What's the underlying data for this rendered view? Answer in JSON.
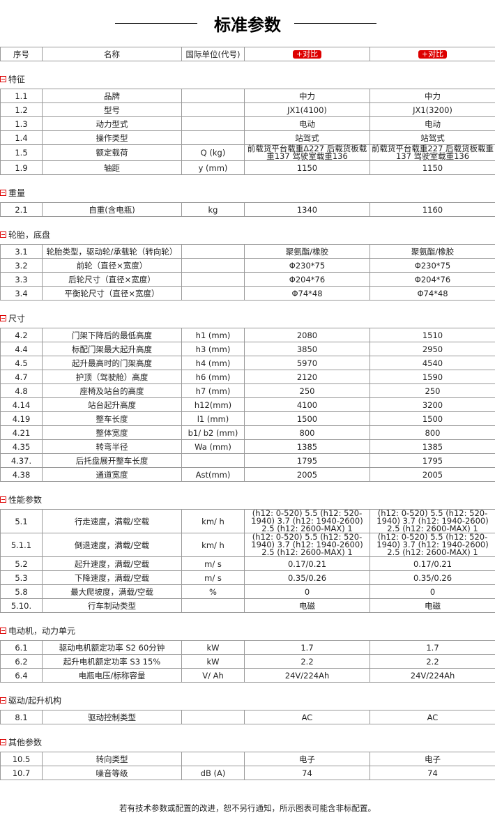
{
  "title": "标准参数",
  "header": {
    "no": "序号",
    "name": "名称",
    "unit": "国际单位(代号)",
    "compare1": "+对比",
    "compare2": "+对比"
  },
  "sections": [
    {
      "title": "特征",
      "rows": [
        [
          "1.1",
          "品牌",
          "",
          "中力",
          "中力"
        ],
        [
          "1.2",
          "型号",
          "",
          "JX1(4100)",
          "JX1(3200)"
        ],
        [
          "1.3",
          "动力型式",
          "",
          "电动",
          "电动"
        ],
        [
          "1.4",
          "操作类型",
          "",
          "站驾式",
          "站驾式"
        ],
        [
          "1.5",
          "额定载荷",
          "Q (kg)",
          "前载货平台载重Δ227 后载货板载重137 驾驶室载重136",
          "前载货平台载重227 后载货板载重137 驾驶室载重136"
        ],
        [
          "1.9",
          "轴距",
          "y (mm)",
          "1150",
          "1150"
        ]
      ]
    },
    {
      "title": "重量",
      "rows": [
        [
          "2.1",
          "自重(含电瓶)",
          "kg",
          "1340",
          "1160"
        ]
      ]
    },
    {
      "title": "轮胎，底盘",
      "rows": [
        [
          "3.1",
          "轮胎类型，驱动轮/承载轮（转向轮）",
          "",
          "聚氨酯/橡胶",
          "聚氨酯/橡胶"
        ],
        [
          "3.2",
          "前轮（直径×宽度）",
          "",
          "Φ230*75",
          "Φ230*75"
        ],
        [
          "3.3",
          "后轮尺寸（直径×宽度）",
          "",
          "Φ204*76",
          "Φ204*76"
        ],
        [
          "3.4",
          "平衡轮尺寸（直径×宽度）",
          "",
          "Φ74*48",
          "Φ74*48"
        ]
      ]
    },
    {
      "title": "尺寸",
      "rows": [
        [
          "4.2",
          "门架下降后的最低高度",
          "h1 (mm)",
          "2080",
          "1510"
        ],
        [
          "4.4",
          "标配门架最大起升高度",
          "h3 (mm)",
          "3850",
          "2950"
        ],
        [
          "4.5",
          "起升最高时的门架高度",
          "h4 (mm)",
          "5970",
          "4540"
        ],
        [
          "4.7",
          "护顶（驾驶舱）高度",
          "h6 (mm)",
          "2120",
          "1590"
        ],
        [
          "4.8",
          "座椅及站台的高度",
          "h7 (mm)",
          "250",
          "250"
        ],
        [
          "4.14",
          "站台起升高度",
          "h12(mm)",
          "4100",
          "3200"
        ],
        [
          "4.19",
          "整车长度",
          "l1 (mm)",
          "1500",
          "1500"
        ],
        [
          "4.21",
          "整体宽度",
          "b1/ b2 (mm)",
          "800",
          "800"
        ],
        [
          "4.35",
          "转弯半径",
          "Wa (mm)",
          "1385",
          "1385"
        ],
        [
          "4.37.",
          "后托盘展开整车长度",
          "",
          "1795",
          "1795"
        ],
        [
          "4.38",
          "通道宽度",
          "Ast(mm)",
          "2005",
          "2005"
        ]
      ]
    },
    {
      "title": "性能参数",
      "rows": [
        [
          "5.1",
          "行走速度，满载/空载",
          "km/ h",
          "(h12: 0-520) 5.5 (h12: 520-1940) 3.7 (h12: 1940-2600) 2.5 (h12: 2600-MAX) 1",
          "(h12: 0-520) 5.5 (h12: 520-1940) 3.7 (h12: 1940-2600) 2.5 (h12: 2600-MAX) 1"
        ],
        [
          "5.1.1",
          "倒退速度，满载/空载",
          "km/ h",
          "(h12: 0-520) 5.5 (h12: 520-1940) 3.7 (h12: 1940-2600) 2.5 (h12: 2600-MAX) 1",
          "(h12: 0-520) 5.5 (h12: 520-1940) 3.7 (h12: 1940-2600) 2.5 (h12: 2600-MAX) 1"
        ],
        [
          "5.2",
          "起升速度，满载/空载",
          "m/ s",
          "0.17/0.21",
          "0.17/0.21"
        ],
        [
          "5.3",
          "下降速度，满载/空载",
          "m/ s",
          "0.35/0.26",
          "0.35/0.26"
        ],
        [
          "5.8",
          "最大爬坡度，满载/空载",
          "%",
          "0",
          "0"
        ],
        [
          "5.10.",
          "行车制动类型",
          "",
          "电磁",
          "电磁"
        ]
      ]
    },
    {
      "title": "电动机，动力单元",
      "rows": [
        [
          "6.1",
          "驱动电机额定功率 S2 60分钟",
          "kW",
          "1.7",
          "1.7"
        ],
        [
          "6.2",
          "起升电机额定功率 S3 15%",
          "kW",
          "2.2",
          "2.2"
        ],
        [
          "6.4",
          "电瓶电压/标称容量",
          "V/ Ah",
          "24V/224Ah",
          "24V/224Ah"
        ]
      ]
    },
    {
      "title": "驱动/起升机构",
      "rows": [
        [
          "8.1",
          "驱动控制类型",
          "",
          "AC",
          "AC"
        ]
      ]
    },
    {
      "title": "其他参数",
      "rows": [
        [
          "10.5",
          "转向类型",
          "",
          "电子",
          "电子"
        ],
        [
          "10.7",
          "噪音等级",
          "dB (A)",
          "74",
          "74"
        ]
      ]
    }
  ],
  "footer": "若有技术参数或配置的改进，恕不另行通知，所示图表可能含非标配置。"
}
